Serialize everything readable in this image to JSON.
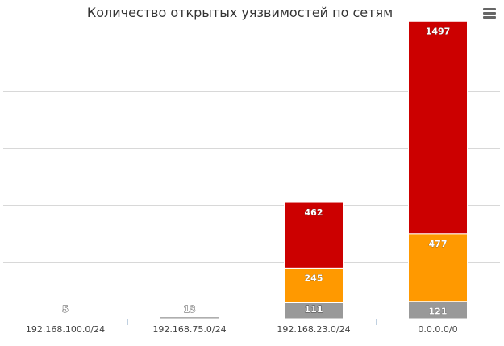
{
  "chart_data": {
    "type": "bar",
    "stacked": true,
    "title": "Количество открытых уязвимостей по сетям",
    "categories": [
      "192.168.100.0/24",
      "192.168.75.0/24",
      "192.168.23.0/24",
      "0.0.0.0/0"
    ],
    "series": [
      {
        "values": [
          0,
          0,
          462,
          1497
        ],
        "color": "#cc0000"
      },
      {
        "values": [
          0,
          0,
          245,
          477
        ],
        "color": "#ff9900"
      },
      {
        "values": [
          5,
          13,
          111,
          121
        ],
        "color": "#999999"
      }
    ],
    "ylim": [
      0,
      2000
    ],
    "y_grid_step": 400,
    "grid": true,
    "data_labels": true,
    "legend": "none"
  },
  "menu": {
    "icon": "hamburger-menu-icon"
  }
}
